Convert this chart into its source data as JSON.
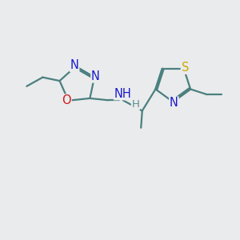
{
  "bg_color": "#eaebec",
  "bond_color": "#4a8080",
  "bond_width": 1.6,
  "atom_colors": {
    "N": "#1a1acc",
    "O": "#cc1a1a",
    "S": "#ccaa00",
    "C": "#4a8080",
    "H": "#5a9090"
  },
  "font_size": 10.5,
  "fig_bg": "#eaebec"
}
